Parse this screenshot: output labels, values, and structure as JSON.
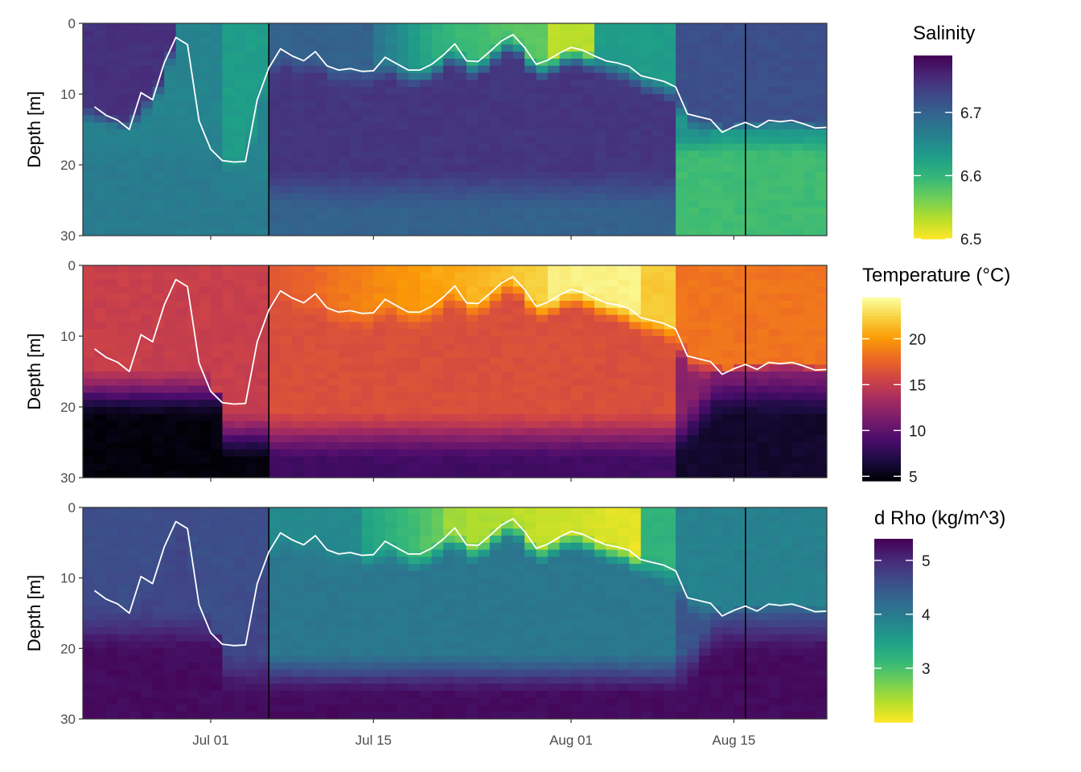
{
  "chart_data": [
    {
      "type": "heatmap",
      "variable": "salinity",
      "ylabel": "Depth [m]",
      "ylim": [
        0,
        30
      ],
      "yticks": [
        0,
        10,
        20,
        30
      ],
      "y_reversed": true,
      "xticks": [
        "Jul 01",
        "Jul 15",
        "Aug 01",
        "Aug 15"
      ],
      "colorscale": "viridis",
      "colorscale_reversed": true,
      "legend": {
        "title": "Salinity",
        "range": [
          6.5,
          6.79
        ],
        "ticks": [
          "6.5",
          "6.6",
          "6.7"
        ]
      },
      "grid": false
    },
    {
      "type": "heatmap",
      "variable": "temperature",
      "ylabel": "Depth [m]",
      "ylim": [
        0,
        30
      ],
      "yticks": [
        0,
        10,
        20,
        30
      ],
      "y_reversed": true,
      "xticks": [
        "Jul 01",
        "Jul 15",
        "Aug 01",
        "Aug 15"
      ],
      "colorscale": "inferno",
      "colorscale_reversed": false,
      "legend": {
        "title": "Temperature (°C)",
        "range": [
          4.5,
          24.5
        ],
        "ticks": [
          "5",
          "10",
          "15",
          "20"
        ]
      },
      "grid": false
    },
    {
      "type": "heatmap",
      "variable": "density",
      "ylabel": "Depth [m]",
      "ylim": [
        0,
        30
      ],
      "yticks": [
        0,
        10,
        20,
        30
      ],
      "y_reversed": true,
      "xticks": [
        "Jul 01",
        "Jul 15",
        "Aug 01",
        "Aug 15"
      ],
      "colorscale": "viridis",
      "colorscale_reversed": true,
      "legend": {
        "title": "d Rho (kg/m^3)",
        "range": [
          2.0,
          5.4
        ],
        "ticks": [
          "3",
          "4",
          "5"
        ]
      },
      "grid": false
    }
  ],
  "x_axis": {
    "start": "2021-06-20",
    "end": "2021-08-23",
    "tick_dates": [
      "2021-07-01",
      "2021-07-15",
      "2021-08-01",
      "2021-08-15"
    ]
  },
  "vertical_lines": [
    "2021-07-06",
    "2021-08-16"
  ],
  "mixed_layer_depth": {
    "color": "#ffffff",
    "dates": [
      "2021-06-21",
      "2021-06-22",
      "2021-06-23",
      "2021-06-24",
      "2021-06-25",
      "2021-06-26",
      "2021-06-27",
      "2021-06-28",
      "2021-06-29",
      "2021-06-30",
      "2021-07-01",
      "2021-07-02",
      "2021-07-03",
      "2021-07-04",
      "2021-07-05",
      "2021-07-06",
      "2021-07-07",
      "2021-07-08",
      "2021-07-09",
      "2021-07-10",
      "2021-07-11",
      "2021-07-12",
      "2021-07-13",
      "2021-07-14",
      "2021-07-15",
      "2021-07-16",
      "2021-07-17",
      "2021-07-18",
      "2021-07-19",
      "2021-07-20",
      "2021-07-21",
      "2021-07-22",
      "2021-07-23",
      "2021-07-24",
      "2021-07-25",
      "2021-07-26",
      "2021-07-27",
      "2021-07-28",
      "2021-07-29",
      "2021-07-30",
      "2021-07-31",
      "2021-08-01",
      "2021-08-02",
      "2021-08-03",
      "2021-08-04",
      "2021-08-05",
      "2021-08-06",
      "2021-08-07",
      "2021-08-08",
      "2021-08-09",
      "2021-08-10",
      "2021-08-11",
      "2021-08-12",
      "2021-08-13",
      "2021-08-14",
      "2021-08-15",
      "2021-08-16",
      "2021-08-17",
      "2021-08-18",
      "2021-08-19",
      "2021-08-20",
      "2021-08-21",
      "2021-08-22",
      "2021-08-23"
    ],
    "depths": [
      11.8,
      13.0,
      13.7,
      15.0,
      9.8,
      10.8,
      5.6,
      2.0,
      3.0,
      13.8,
      17.8,
      19.4,
      19.6,
      19.5,
      10.8,
      6.3,
      3.6,
      4.6,
      5.3,
      4.0,
      6.0,
      6.6,
      6.4,
      6.8,
      6.7,
      4.8,
      5.7,
      6.6,
      6.6,
      5.8,
      4.5,
      2.9,
      5.3,
      5.4,
      4.0,
      2.5,
      1.6,
      3.4,
      5.8,
      5.2,
      4.2,
      3.4,
      3.8,
      4.6,
      5.3,
      5.6,
      6.1,
      7.4,
      7.8,
      8.2,
      9.0,
      12.8,
      13.2,
      13.6,
      15.4,
      14.6,
      14.0,
      14.7,
      13.7,
      13.9,
      13.7,
      14.2,
      14.8,
      14.7
    ]
  }
}
